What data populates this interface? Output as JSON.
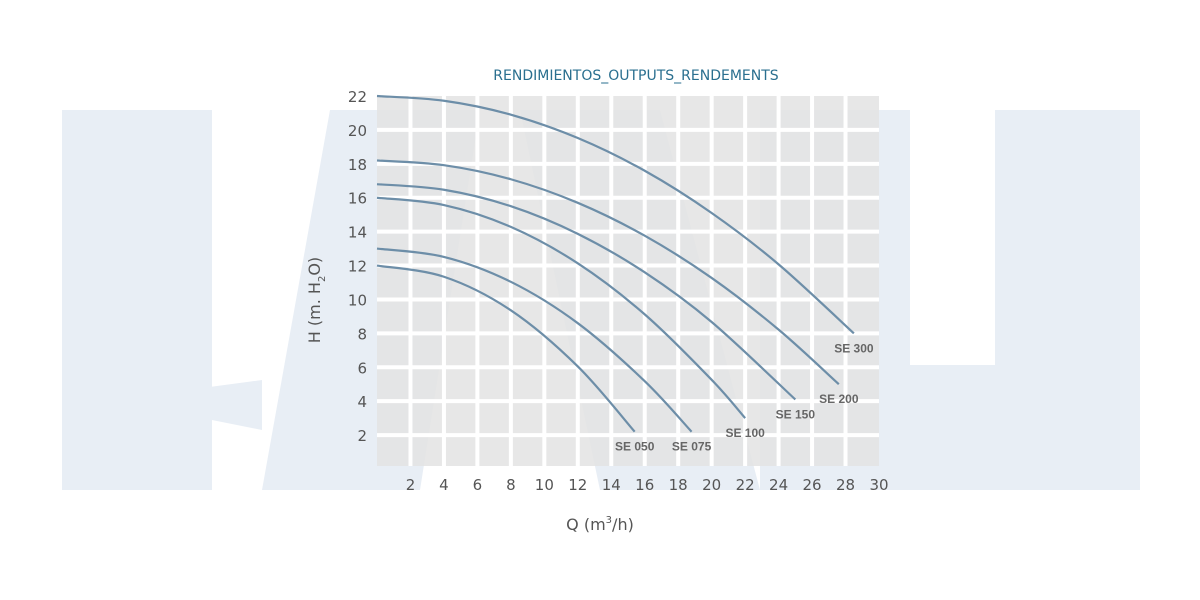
{
  "chart_data": {
    "type": "line",
    "title": "RENDIMIENTOS_OUTPUTS_RENDEMENTS",
    "xlabel": "Q (m³/h)",
    "xlabel_parts": {
      "main": "Q (m",
      "sup": "3",
      "tail": "/h)"
    },
    "ylabel": "H (m. H₂O)",
    "ylabel_parts": {
      "main": "H (m. H",
      "sub": "2",
      "tail": "O)"
    },
    "xlim": [
      0,
      30
    ],
    "ylim": [
      0,
      22
    ],
    "xticks": [
      2,
      4,
      6,
      8,
      10,
      12,
      14,
      16,
      18,
      20,
      22,
      24,
      26,
      28,
      30
    ],
    "yticks": [
      2,
      4,
      6,
      8,
      10,
      12,
      14,
      16,
      18,
      20,
      22
    ],
    "grid": true,
    "colors": {
      "line": "#6d8ea8",
      "plot_bg": "#e3e3e3",
      "grid": "#ffffff",
      "title": "#2a6f8f",
      "watermark": "#e8eef5"
    },
    "series": [
      {
        "name": "SE 300",
        "x": [
          0,
          4,
          8,
          12,
          16,
          20,
          24,
          28.5
        ],
        "y": [
          22,
          21.72,
          20.9,
          19.52,
          17.59,
          15.1,
          12.07,
          8
        ]
      },
      {
        "name": "SE 200",
        "x": [
          0,
          4,
          8,
          12,
          16,
          20,
          24,
          27.6
        ],
        "y": [
          18.2,
          17.92,
          17.09,
          15.7,
          13.76,
          11.27,
          8.22,
          5
        ]
      },
      {
        "name": "SE 150",
        "x": [
          0,
          4,
          8,
          12,
          16,
          20,
          25
        ],
        "y": [
          16.8,
          16.47,
          15.5,
          13.87,
          11.6,
          8.67,
          4.1
        ]
      },
      {
        "name": "SE 100",
        "x": [
          0,
          4,
          8,
          12,
          16,
          20,
          22
        ],
        "y": [
          16,
          15.57,
          14.28,
          12.13,
          9.12,
          5.26,
          3
        ]
      },
      {
        "name": "SE 075",
        "x": [
          0,
          4,
          8,
          12,
          16,
          18.8
        ],
        "y": [
          13,
          12.51,
          11.04,
          8.6,
          5.18,
          2.2
        ]
      },
      {
        "name": "SE 050",
        "x": [
          0,
          4,
          8,
          12,
          15.4
        ],
        "y": [
          12,
          11.34,
          9.36,
          6.05,
          2.2
        ]
      }
    ]
  }
}
